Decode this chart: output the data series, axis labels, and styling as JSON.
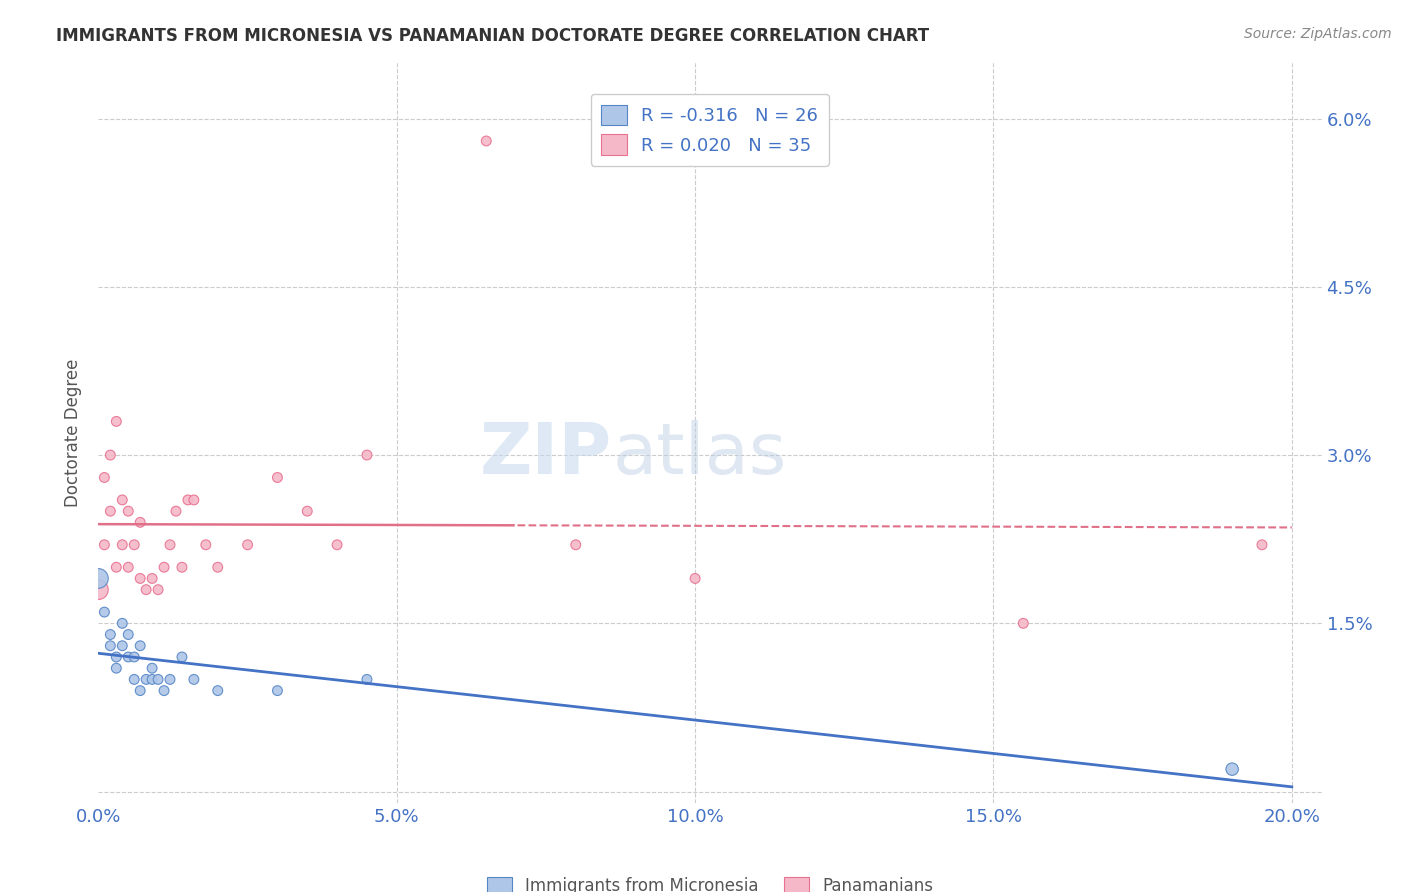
{
  "title": "IMMIGRANTS FROM MICRONESIA VS PANAMANIAN DOCTORATE DEGREE CORRELATION CHART",
  "source": "Source: ZipAtlas.com",
  "ylabel": "Doctorate Degree",
  "watermark_zip": "ZIP",
  "watermark_atlas": "atlas",
  "xlim": [
    0.0,
    0.205
  ],
  "ylim": [
    -0.001,
    0.065
  ],
  "ytick_values": [
    0.0,
    0.015,
    0.03,
    0.045,
    0.06
  ],
  "xtick_values": [
    0.0,
    0.05,
    0.1,
    0.15,
    0.2
  ],
  "blue_R": -0.316,
  "blue_N": 26,
  "pink_R": 0.02,
  "pink_N": 35,
  "blue_fill": "#aec6e8",
  "pink_fill": "#f5b8c8",
  "blue_edge": "#5585c5",
  "pink_edge": "#e87090",
  "blue_line_color": "#4472c4",
  "pink_line_color": "#e07088",
  "legend_label_blue": "Immigrants from Micronesia",
  "legend_label_pink": "Panamanians",
  "blue_points_x": [
    0.0,
    0.001,
    0.002,
    0.002,
    0.003,
    0.003,
    0.004,
    0.004,
    0.005,
    0.005,
    0.006,
    0.006,
    0.007,
    0.007,
    0.008,
    0.009,
    0.009,
    0.01,
    0.011,
    0.012,
    0.014,
    0.016,
    0.02,
    0.03,
    0.045,
    0.19
  ],
  "blue_points_y": [
    0.019,
    0.016,
    0.014,
    0.013,
    0.012,
    0.011,
    0.013,
    0.015,
    0.012,
    0.014,
    0.01,
    0.012,
    0.009,
    0.013,
    0.01,
    0.011,
    0.01,
    0.01,
    0.009,
    0.01,
    0.012,
    0.01,
    0.009,
    0.009,
    0.01,
    0.002
  ],
  "blue_sizes": [
    200,
    50,
    50,
    50,
    50,
    50,
    50,
    50,
    50,
    50,
    50,
    50,
    50,
    50,
    50,
    50,
    50,
    50,
    50,
    50,
    50,
    50,
    50,
    50,
    50,
    80
  ],
  "pink_points_x": [
    0.0,
    0.001,
    0.001,
    0.002,
    0.002,
    0.003,
    0.003,
    0.004,
    0.004,
    0.005,
    0.005,
    0.006,
    0.007,
    0.007,
    0.008,
    0.009,
    0.01,
    0.011,
    0.012,
    0.013,
    0.014,
    0.015,
    0.016,
    0.018,
    0.02,
    0.025,
    0.03,
    0.035,
    0.04,
    0.045,
    0.065,
    0.08,
    0.1,
    0.155,
    0.195
  ],
  "pink_points_y": [
    0.018,
    0.028,
    0.022,
    0.03,
    0.025,
    0.033,
    0.02,
    0.022,
    0.026,
    0.02,
    0.025,
    0.022,
    0.019,
    0.024,
    0.018,
    0.019,
    0.018,
    0.02,
    0.022,
    0.025,
    0.02,
    0.026,
    0.026,
    0.022,
    0.02,
    0.022,
    0.028,
    0.025,
    0.022,
    0.03,
    0.058,
    0.022,
    0.019,
    0.015,
    0.022
  ],
  "pink_sizes": [
    200,
    50,
    50,
    50,
    50,
    50,
    50,
    50,
    50,
    50,
    50,
    50,
    50,
    50,
    50,
    50,
    50,
    50,
    50,
    50,
    50,
    50,
    50,
    50,
    50,
    50,
    50,
    50,
    50,
    50,
    50,
    50,
    50,
    50,
    50
  ],
  "grid_color": "#cccccc",
  "bg_color": "#ffffff",
  "title_color": "#333333",
  "axis_label_color": "#555555",
  "tick_label_color": "#4472c4",
  "source_color": "#888888",
  "legend_text_color": "#4472c4",
  "legend_r_color": "#222222"
}
